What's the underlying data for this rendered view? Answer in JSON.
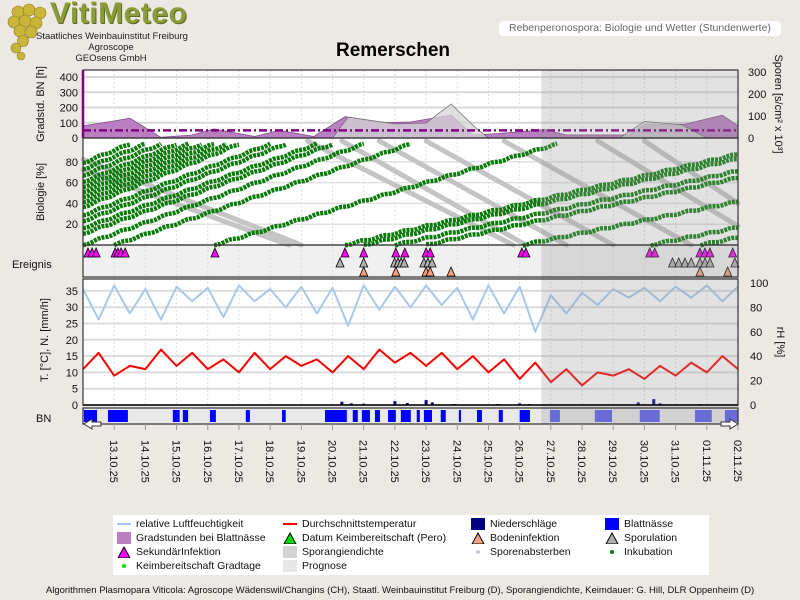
{
  "header": {
    "logo_text": "VitiMeteo",
    "org_lines": [
      "Staatliches Weinbauinstitut Freiburg",
      "Agroscope",
      "GEOsens GmbH"
    ],
    "title": "Remerschen",
    "subtitle": "Rebenperonospora: Biologie und Wetter (Stundenwerte)"
  },
  "axes": {
    "gradstd_label": "Gradstd. BN [h]",
    "gradstd_ticks": [
      "0",
      "100",
      "200",
      "300",
      "400"
    ],
    "sporen_label": "Sporen [s/cm² x 10³]",
    "sporen_ticks": [
      "0",
      "100",
      "200",
      "300"
    ],
    "bio_label": "Biologie [%]",
    "bio_ticks": [
      "20",
      "40",
      "60",
      "80"
    ],
    "event_label": "Ereignis",
    "temp_label": "T. [°C], N. [mm/h]",
    "temp_ticks": [
      "0",
      "5",
      "10",
      "15",
      "20",
      "25",
      "30",
      "35"
    ],
    "rh_label": "rH [%]",
    "rh_ticks": [
      "0",
      "20",
      "40",
      "60",
      "80",
      "100"
    ],
    "bn_label": "BN"
  },
  "dates": [
    "13.10.25",
    "14.10.25",
    "15.10.25",
    "16.10.25",
    "17.10.25",
    "18.10.25",
    "19.10.25",
    "20.10.25",
    "21.10.25",
    "22.10.25",
    "23.10.25",
    "24.10.25",
    "25.10.25",
    "26.10.25",
    "27.10.25",
    "28.10.25",
    "29.10.25",
    "30.10.25",
    "31.10.25",
    "01.11.25",
    "02.11.25"
  ],
  "chart_data": {
    "type": "line",
    "x_unit": "days since 12.10.25 00:00",
    "x_range": [
      0,
      21
    ],
    "forecast_start_day": 14.7,
    "colors": {
      "rh": "#a8c8ec",
      "temp": "#ff0000",
      "gradstd": "#b97fc0",
      "sporangia": "#d4d4d4",
      "incubation": "#0a7a0a",
      "sekundaer": "#ff00ff",
      "sporulation": "#b0b0b0",
      "boden": "#f4a080",
      "precip": "#000080",
      "bn": "#0000ff",
      "threshold": "#800080"
    },
    "gradstd_threshold": 50,
    "gradstd": {
      "x": [
        0,
        0.8,
        1.5,
        2.5,
        3.5,
        4.2,
        5.5,
        6.3,
        7.4,
        8.4,
        9.5,
        10.5,
        11.8,
        12.5,
        13.3,
        14.0,
        14.8,
        15.5,
        16.5,
        17.5,
        18.0,
        19.3,
        20.5,
        21.0
      ],
      "y": [
        80,
        105,
        130,
        5,
        20,
        60,
        10,
        50,
        10,
        140,
        100,
        105,
        150,
        20,
        30,
        40,
        55,
        20,
        20,
        20,
        90,
        90,
        150,
        80
      ]
    },
    "sporangia": {
      "x": [
        8.0,
        8.5,
        10.0,
        11.0,
        11.8,
        12.6,
        13.0,
        17.2,
        18.0,
        19.2,
        20.0
      ],
      "y": [
        0,
        95,
        64,
        68,
        155,
        45,
        0,
        0,
        75,
        60,
        0
      ]
    },
    "temperature": {
      "x_step_days": 0.5,
      "y": [
        11,
        16,
        9,
        12,
        11,
        17,
        12,
        16,
        11,
        14,
        10,
        16,
        11,
        15,
        12,
        14,
        10,
        15,
        11,
        17,
        13,
        16,
        12,
        16,
        11,
        15,
        10,
        14,
        8,
        13,
        7,
        11,
        6,
        10,
        9,
        11,
        8,
        12,
        9,
        13,
        10,
        15,
        11
      ]
    },
    "rel_humidity": {
      "x_step_days": 0.5,
      "y": [
        95,
        70,
        98,
        75,
        95,
        70,
        97,
        85,
        96,
        72,
        98,
        85,
        95,
        80,
        97,
        75,
        96,
        65,
        98,
        78,
        97,
        80,
        98,
        82,
        96,
        70,
        98,
        75,
        97,
        60,
        90,
        75,
        92,
        82,
        95,
        88,
        96,
        85,
        97,
        88,
        98,
        85,
        97
      ]
    },
    "precipitation": [
      [
        8.3,
        1
      ],
      [
        8.6,
        0.5
      ],
      [
        9.0,
        0.4
      ],
      [
        10.0,
        1.2
      ],
      [
        10.4,
        0.6
      ],
      [
        11.0,
        1.5
      ],
      [
        11.2,
        0.8
      ],
      [
        11.9,
        0.3
      ],
      [
        13.3,
        0.3
      ],
      [
        14.0,
        0.5
      ],
      [
        14.3,
        0.3
      ],
      [
        17.8,
        0.8
      ],
      [
        18.3,
        1.8
      ],
      [
        18.5,
        0.5
      ],
      [
        19.8,
        0.3
      ]
    ],
    "leaf_wetness": [
      [
        0.03,
        0.45
      ],
      [
        0.8,
        1.44
      ],
      [
        2.88,
        3.1
      ],
      [
        3.2,
        3.37
      ],
      [
        4.07,
        4.26
      ],
      [
        5.22,
        5.35
      ],
      [
        6.38,
        6.5
      ],
      [
        7.76,
        8.46
      ],
      [
        8.65,
        8.81
      ],
      [
        8.94,
        9.2
      ],
      [
        9.36,
        9.52
      ],
      [
        9.78,
        10.03
      ],
      [
        10.19,
        10.51
      ],
      [
        10.7,
        10.8
      ],
      [
        10.93,
        11.19
      ],
      [
        11.47,
        11.63
      ],
      [
        12.05,
        12.12
      ],
      [
        12.63,
        12.79
      ],
      [
        13.33,
        13.46
      ],
      [
        14.0,
        14.33
      ],
      [
        14.97,
        15.29
      ],
      [
        16.41,
        16.96
      ],
      [
        17.85,
        18.49
      ],
      [
        19.62,
        20.16
      ],
      [
        20.58,
        21.0
      ]
    ],
    "incubation": [
      [
        -6.5,
        8
      ],
      [
        -6,
        8
      ],
      [
        -5.5,
        8
      ],
      [
        -5,
        8
      ],
      [
        -4.6,
        8
      ],
      [
        -4.2,
        8
      ],
      [
        -3.8,
        8
      ],
      [
        -3.4,
        8
      ],
      [
        -3,
        8
      ],
      [
        -2.5,
        8.5
      ],
      [
        -2,
        8.5
      ],
      [
        -1.5,
        9
      ],
      [
        -1,
        9
      ],
      [
        0,
        9
      ],
      [
        1,
        9.5
      ],
      [
        4.2,
        11
      ],
      [
        8.4,
        14
      ],
      [
        9.0,
        14
      ],
      [
        10.0,
        15
      ],
      [
        11.0,
        15
      ],
      [
        14.1,
        16
      ],
      [
        18.2,
        16
      ],
      [
        19.8,
        16
      ]
    ],
    "spore_decay": [
      [
        -2.5,
        100,
        6.6
      ],
      [
        -1.5,
        100,
        7.0
      ],
      [
        7.2,
        100,
        13.8
      ],
      [
        8.3,
        100,
        14.2
      ],
      [
        9.5,
        100,
        15.5
      ],
      [
        11,
        100,
        17
      ],
      [
        13.5,
        100,
        19.5
      ],
      [
        16.5,
        100,
        22
      ],
      [
        18,
        100,
        23
      ]
    ],
    "events": {
      "sekundaerinfektion": [
        0.16,
        0.29,
        0.42,
        1.03,
        1.12,
        1.22,
        1.35,
        4.23,
        8.4,
        9.0,
        10.03,
        10.32,
        11.0,
        11.13,
        14.07,
        14.2,
        18.17,
        18.33,
        19.78,
        19.94,
        20.1,
        20.83
      ],
      "sporulation": [
        8.24,
        9.0,
        9.99,
        10.1,
        10.2,
        10.3,
        10.93,
        11.06,
        11.19,
        18.9,
        19.1,
        19.3,
        19.5,
        19.78,
        19.94,
        20.1,
        20.9
      ],
      "bodeninfektion": [
        9.0,
        10.03,
        11.0,
        11.13,
        11.8,
        19.78,
        20.67
      ]
    }
  },
  "legend": {
    "items": [
      {
        "label": "relative Luftfeuchtigkeit"
      },
      {
        "label": "Durchschnittstemperatur"
      },
      {
        "label": "Niederschläge"
      },
      {
        "label": "Blattnässe"
      },
      {
        "label": "Gradstunden bei Blattnässe"
      },
      {
        "label": "Datum Keimbereitschaft (Pero)"
      },
      {
        "label": "Bodeninfektion"
      },
      {
        "label": "Sporulation"
      },
      {
        "label": "SekundärInfektion"
      },
      {
        "label": "Sporangiendichte"
      },
      {
        "label": "Sporenabsterben"
      },
      {
        "label": "Inkubation"
      },
      {
        "label": "Keimbereitschaft Gradtage"
      },
      {
        "label": "Prognose"
      }
    ]
  },
  "footer": "Algorithmen Plasmopara Viticola: Agroscope Wädenswil/Changins (CH), Staatl. Weinbauinstitut Freiburg (D), Sporangiendichte, Keimdauer: G. Hill, DLR Oppenheim (D)"
}
